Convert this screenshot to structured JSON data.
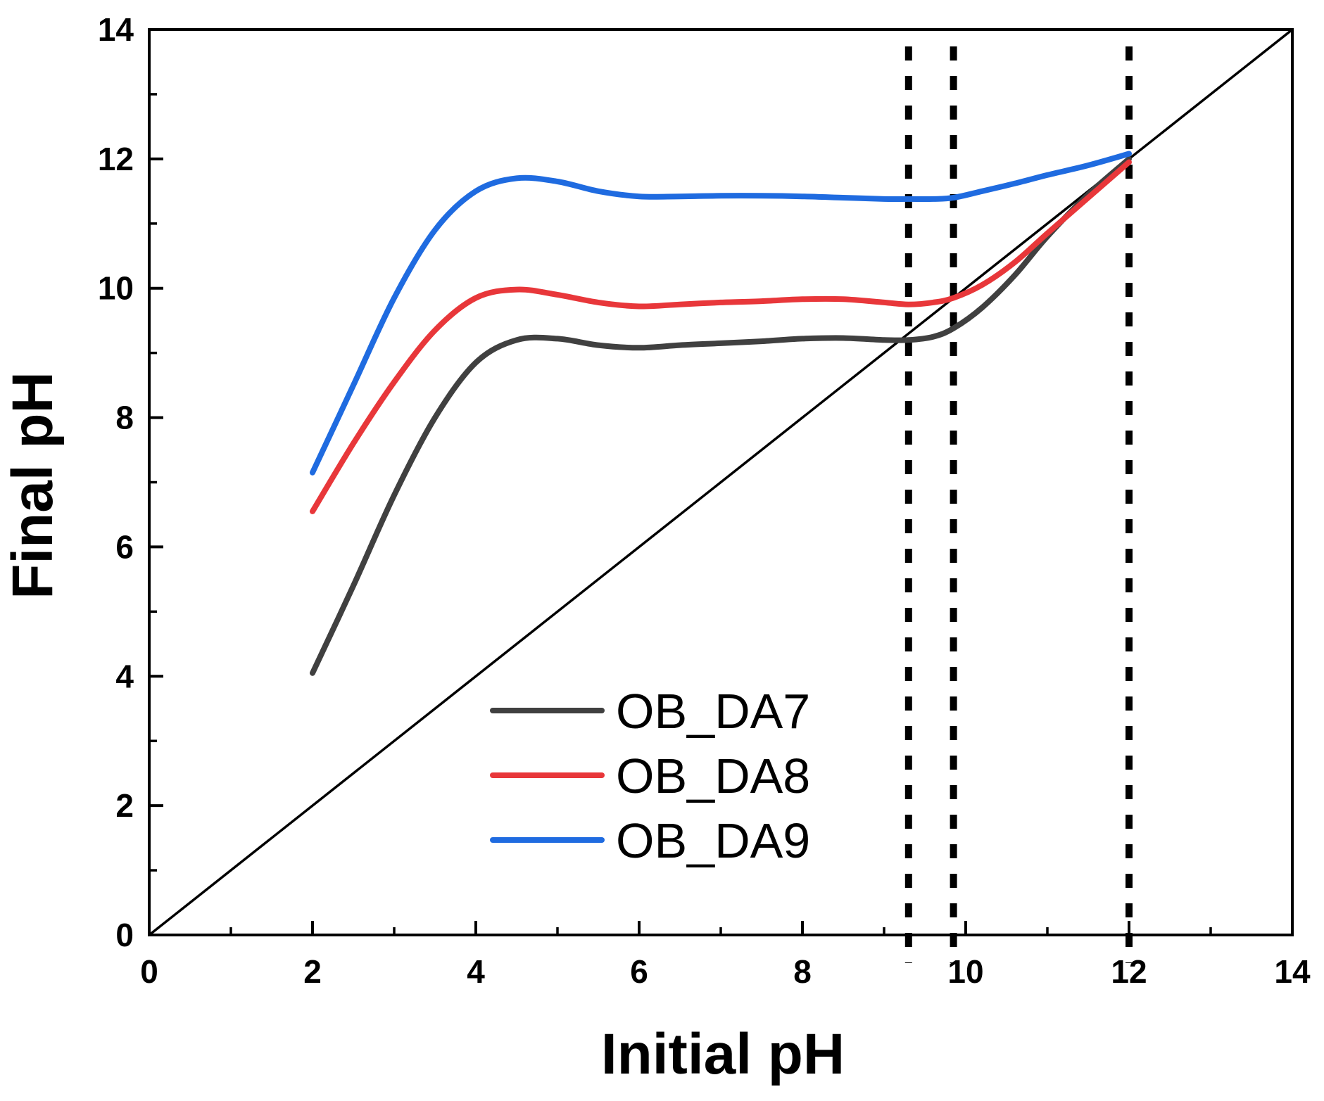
{
  "chart_data": {
    "type": "line",
    "xlabel": "Initial pH",
    "ylabel": "Final pH",
    "xlim": [
      0,
      14
    ],
    "ylim": [
      0,
      14
    ],
    "xticks": [
      0,
      2,
      4,
      6,
      8,
      10,
      12,
      14
    ],
    "yticks": [
      0,
      2,
      4,
      6,
      8,
      10,
      12,
      14
    ],
    "xticks_labels": [
      "0",
      "2",
      "4",
      "6",
      "8",
      "10",
      "12",
      "14"
    ],
    "yticks_labels": [
      "0",
      "2",
      "4",
      "6",
      "8",
      "10",
      "12",
      "14"
    ],
    "minor_tick_step": 1,
    "grid": false,
    "legend_position": "bottom-center",
    "reference_line": {
      "x": [
        0,
        14
      ],
      "y": [
        0,
        14
      ],
      "color": "#000000"
    },
    "vertical_markers": [
      9.3,
      9.85,
      12.0
    ],
    "series": [
      {
        "name": "OB_DA7",
        "color": "#404040",
        "x": [
          2.0,
          2.5,
          3.0,
          3.5,
          4.0,
          4.5,
          5.0,
          5.5,
          6.0,
          6.5,
          7.0,
          7.5,
          8.0,
          8.5,
          9.0,
          9.3,
          9.6,
          9.85,
          10.2,
          10.6,
          11.0,
          11.5,
          12.0
        ],
        "y": [
          4.05,
          5.4,
          6.8,
          8.0,
          8.85,
          9.2,
          9.22,
          9.12,
          9.08,
          9.12,
          9.15,
          9.18,
          9.22,
          9.23,
          9.2,
          9.2,
          9.25,
          9.38,
          9.7,
          10.2,
          10.8,
          11.45,
          12.0
        ]
      },
      {
        "name": "OB_DA8",
        "color": "#e8373a",
        "x": [
          2.0,
          2.5,
          3.0,
          3.5,
          4.0,
          4.5,
          5.0,
          5.5,
          6.0,
          6.5,
          7.0,
          7.5,
          8.0,
          8.5,
          9.0,
          9.3,
          9.6,
          9.85,
          10.2,
          10.6,
          11.0,
          11.5,
          12.0
        ],
        "y": [
          6.55,
          7.6,
          8.55,
          9.35,
          9.85,
          9.98,
          9.9,
          9.78,
          9.72,
          9.75,
          9.78,
          9.8,
          9.83,
          9.83,
          9.78,
          9.75,
          9.78,
          9.85,
          10.05,
          10.4,
          10.85,
          11.4,
          11.95
        ]
      },
      {
        "name": "OB_DA9",
        "color": "#1f6be0",
        "x": [
          2.0,
          2.5,
          3.0,
          3.5,
          4.0,
          4.5,
          5.0,
          5.5,
          6.0,
          6.5,
          7.0,
          7.5,
          8.0,
          8.5,
          9.0,
          9.3,
          9.6,
          9.85,
          10.2,
          10.6,
          11.0,
          11.5,
          12.0
        ],
        "y": [
          7.15,
          8.5,
          9.85,
          10.9,
          11.5,
          11.7,
          11.65,
          11.5,
          11.42,
          11.42,
          11.43,
          11.43,
          11.42,
          11.4,
          11.38,
          11.38,
          11.38,
          11.4,
          11.5,
          11.62,
          11.75,
          11.9,
          12.08
        ]
      }
    ]
  }
}
